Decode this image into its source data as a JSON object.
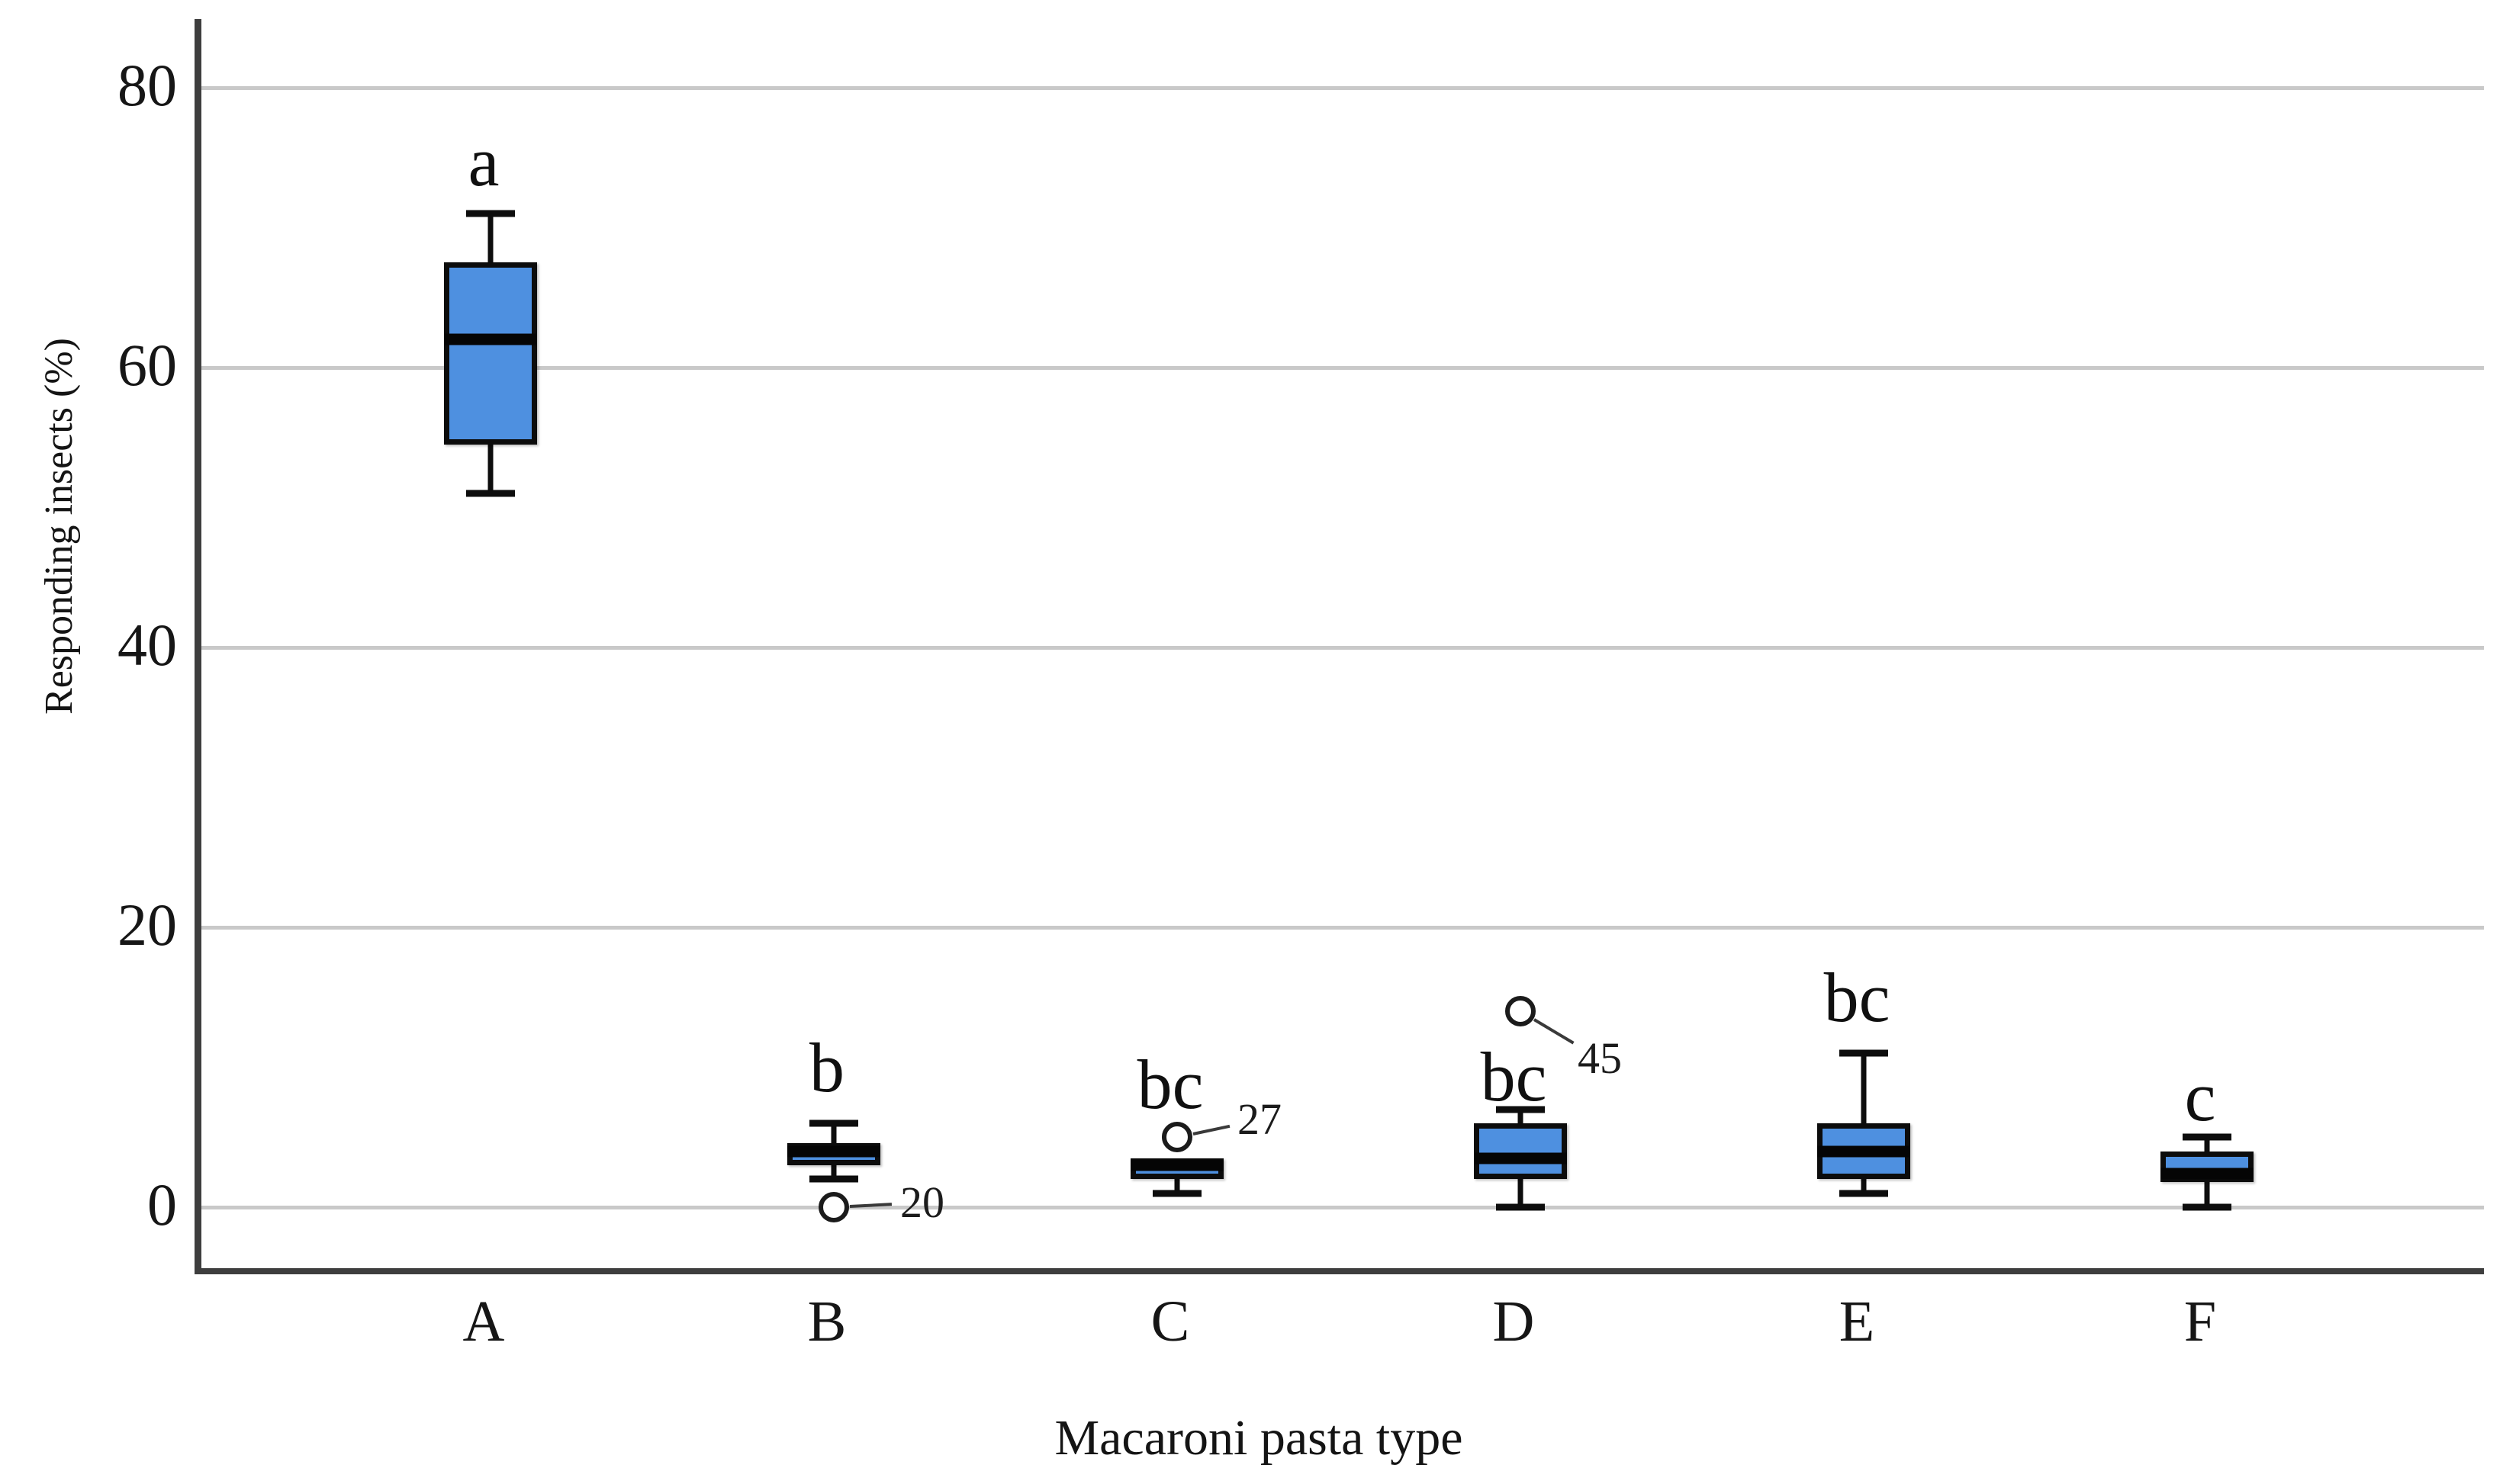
{
  "chart_data": {
    "type": "boxplot",
    "xlabel": "Macaroni pasta type",
    "ylabel": "Responding insects (%)",
    "categories": [
      "A",
      "B",
      "C",
      "D",
      "E",
      "F"
    ],
    "yticks": [
      0,
      20,
      40,
      60,
      80
    ],
    "ylim": [
      -4.4,
      84.9
    ],
    "grid": "horizontal",
    "box_fill_color": "#4e90e0",
    "gridline_color": "#c9c9c9",
    "axis_color": "#3e3e3e",
    "boxes": [
      {
        "category": "A",
        "letter": "a",
        "letter_y": 74.7,
        "whisker_low": 51,
        "q1": 54.5,
        "median": 62,
        "q3": 67.5,
        "whisker_high": 71,
        "outliers": []
      },
      {
        "category": "B",
        "letter": "b",
        "letter_y": 10.0,
        "whisker_low": 2,
        "q1": 3,
        "median": 4,
        "q3": 4.6,
        "whisker_high": 6,
        "outliers": [
          {
            "value": 0,
            "label": "20",
            "label_dx": 116,
            "label_dy": -6
          }
        ]
      },
      {
        "category": "C",
        "letter": "bc",
        "letter_y": 8.8,
        "whisker_low": 1,
        "q1": 2,
        "median": 3,
        "q3": 3.5,
        "whisker_high": 3.5,
        "upper_whisker": false,
        "outliers": [
          {
            "value": 5,
            "label": "27",
            "label_dx": 108,
            "label_dy": -23
          }
        ]
      },
      {
        "category": "D",
        "letter": "bc",
        "letter_y": 9.3,
        "whisker_low": 0,
        "q1": 2,
        "median": 3.5,
        "q3": 6,
        "whisker_high": 7,
        "outliers": [
          {
            "value": 14,
            "label": "45",
            "label_dx": 104,
            "label_dy": 62
          }
        ]
      },
      {
        "category": "E",
        "letter": "bc",
        "letter_y": 15.0,
        "whisker_low": 1,
        "q1": 2,
        "median": 4,
        "q3": 6,
        "whisker_high": 11,
        "outliers": []
      },
      {
        "category": "F",
        "letter": "c",
        "letter_y": 7.9,
        "whisker_low": 0,
        "q1": 1.8,
        "median": 2.4,
        "q3": 4,
        "whisker_high": 5,
        "outliers": []
      }
    ]
  }
}
